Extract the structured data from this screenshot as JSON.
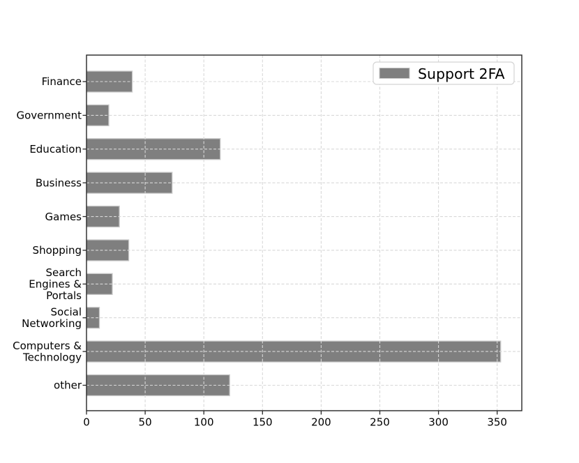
{
  "figure": {
    "background": "#ffffff"
  },
  "chart_data": {
    "type": "bar",
    "orientation": "horizontal",
    "title": "",
    "xlabel": "",
    "ylabel": "",
    "categories": [
      "Finance",
      "Government",
      "Education",
      "Business",
      "Games",
      "Shopping",
      "Search\nEngines &\nPortals",
      "Social\nNetworking",
      "Computers &\nTechnology",
      "other"
    ],
    "series": [
      {
        "name": "Support 2FA",
        "values": [
          39,
          19,
          114,
          73,
          28,
          36,
          22,
          11,
          353,
          122
        ],
        "color": "#7f7f7f"
      }
    ],
    "xlim": [
      0,
      371
    ],
    "xticks": [
      0,
      50,
      100,
      150,
      200,
      250,
      300,
      350
    ],
    "grid": {
      "enabled": true,
      "style": "dashed",
      "color": "#d8d8d8",
      "above_bars": true
    },
    "legend": {
      "position": "upper right",
      "label": "Support 2FA",
      "swatch_color": "#7f7f7f",
      "border_color": "#d4d4d4",
      "background": "#ffffff"
    },
    "bar_edge_color": "#c9c9c9",
    "spine_color": "#262626",
    "text_color": "#000000"
  }
}
